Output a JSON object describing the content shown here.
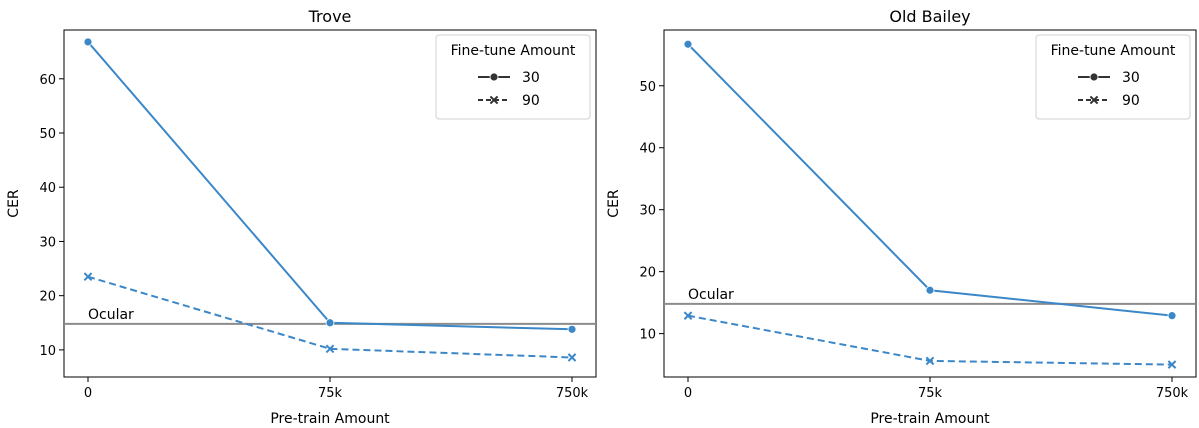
{
  "chart_data": [
    {
      "type": "line",
      "title": "Trove",
      "xlabel": "Pre-train Amount",
      "ylabel": "CER",
      "categories": [
        "0",
        "75k",
        "750k"
      ],
      "yticks": [
        10,
        20,
        30,
        40,
        50,
        60
      ],
      "ylim": [
        5,
        69
      ],
      "grid": false,
      "legend": {
        "title": "Fine-tune Amount",
        "position": "top-right"
      },
      "series": [
        {
          "name": "30",
          "values": [
            66.8,
            15.0,
            13.8
          ],
          "marker": "circle",
          "dash": "solid",
          "color": "#3b87c8"
        },
        {
          "name": "90",
          "values": [
            23.5,
            10.2,
            8.6
          ],
          "marker": "x",
          "dash": "dashed",
          "color": "#3b87c8"
        }
      ],
      "reference": {
        "label": "Ocular",
        "value": 14.8,
        "color": "#8c8c8c"
      }
    },
    {
      "type": "line",
      "title": "Old Bailey",
      "xlabel": "Pre-train Amount",
      "ylabel": "CER",
      "categories": [
        "0",
        "75k",
        "750k"
      ],
      "yticks": [
        10,
        20,
        30,
        40,
        50
      ],
      "ylim": [
        3,
        59
      ],
      "grid": false,
      "legend": {
        "title": "Fine-tune Amount",
        "position": "top-right"
      },
      "series": [
        {
          "name": "30",
          "values": [
            56.7,
            17.0,
            12.9
          ],
          "marker": "circle",
          "dash": "solid",
          "color": "#3b87c8"
        },
        {
          "name": "90",
          "values": [
            12.9,
            5.6,
            5.0
          ],
          "marker": "x",
          "dash": "dashed",
          "color": "#3b87c8"
        }
      ],
      "reference": {
        "label": "Ocular",
        "value": 14.8,
        "color": "#8c8c8c"
      }
    }
  ]
}
